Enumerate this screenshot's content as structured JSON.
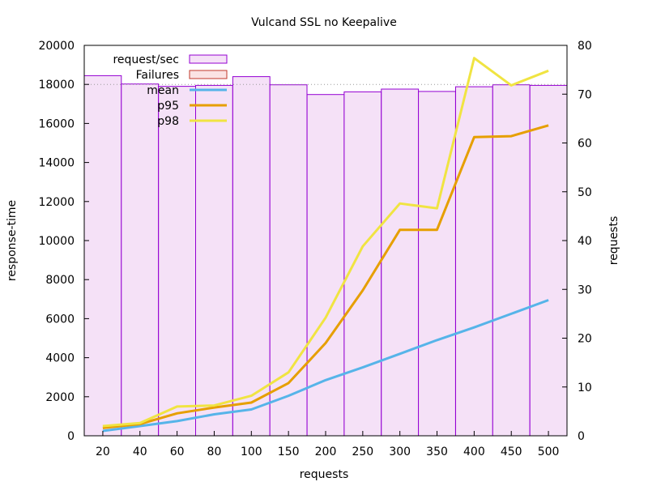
{
  "chart_data": {
    "type": "bar+line",
    "title": "Vulcand SSL no Keepalive",
    "xlabel": "requests",
    "ylabel": "response-time",
    "y2label": "requests",
    "categories": [
      "20",
      "40",
      "60",
      "80",
      "100",
      "150",
      "200",
      "250",
      "300",
      "350",
      "400",
      "450",
      "500"
    ],
    "ylim": [
      0,
      20000
    ],
    "yticks": [
      "0",
      "2000",
      "4000",
      "6000",
      "8000",
      "10000",
      "12000",
      "14000",
      "16000",
      "18000",
      "20000"
    ],
    "y2lim": [
      0,
      80
    ],
    "y2ticks": [
      "0",
      "10",
      "20",
      "30",
      "40",
      "50",
      "60",
      "70",
      "80"
    ],
    "reference_line": 18000,
    "legend_position": "top-left",
    "bars": [
      {
        "name": "request/sec",
        "axis": "y",
        "color": "#9400d3",
        "fill": "#f5e1f7",
        "values": [
          18450,
          18020,
          17900,
          17950,
          18400,
          17980,
          17480,
          17620,
          17760,
          17640,
          17880,
          17980,
          17950
        ]
      },
      {
        "name": "Failures",
        "axis": "y2",
        "color": "#c0392b",
        "fill": "#fbe3e3",
        "values": [
          0,
          0,
          0,
          0,
          0,
          0,
          0,
          0,
          0,
          0,
          0,
          0,
          0
        ]
      }
    ],
    "series": [
      {
        "name": "mean",
        "color": "#56b4e9",
        "values": [
          250,
          500,
          750,
          1100,
          1350,
          2050,
          2850,
          3500,
          4200,
          4900,
          5550,
          6250,
          6950
        ]
      },
      {
        "name": "p95",
        "color": "#e69f00",
        "values": [
          400,
          600,
          1150,
          1450,
          1700,
          2700,
          4750,
          7450,
          10550,
          10550,
          15300,
          15350,
          15900
        ]
      },
      {
        "name": "p98",
        "color": "#f0e442",
        "values": [
          500,
          650,
          1500,
          1550,
          2050,
          3250,
          6050,
          9700,
          11900,
          11650,
          19350,
          17950,
          18700
        ]
      }
    ]
  }
}
